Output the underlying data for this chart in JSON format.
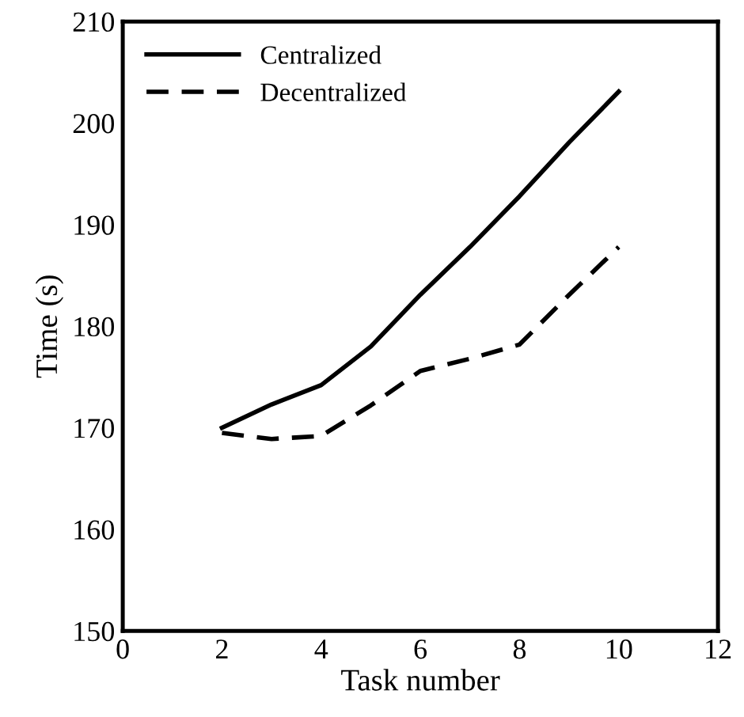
{
  "chart_data": {
    "type": "line",
    "xlabel": "Task number",
    "ylabel": "Time (s)",
    "xlim": [
      0,
      12
    ],
    "xticks": [
      0,
      2,
      4,
      6,
      8,
      10,
      12
    ],
    "ylim": [
      150,
      210
    ],
    "yticks": [
      150,
      160,
      170,
      180,
      190,
      200,
      210
    ],
    "x": [
      2,
      3,
      4,
      5,
      6,
      7,
      8,
      9,
      10
    ],
    "series": [
      {
        "name": "Centralized",
        "color": "#000000",
        "line_style": "solid",
        "values": [
          170,
          172.3,
          174.2,
          178,
          183.1,
          187.8,
          192.8,
          198.1,
          203.1
        ]
      },
      {
        "name": "Decentralized",
        "color": "#000000",
        "line_style": "dashed",
        "values": [
          169.5,
          168.9,
          169.2,
          172.2,
          175.6,
          176.8,
          178.2,
          183.1,
          187.8
        ]
      }
    ],
    "legend": "top left",
    "grid": false,
    "marker": "none"
  }
}
